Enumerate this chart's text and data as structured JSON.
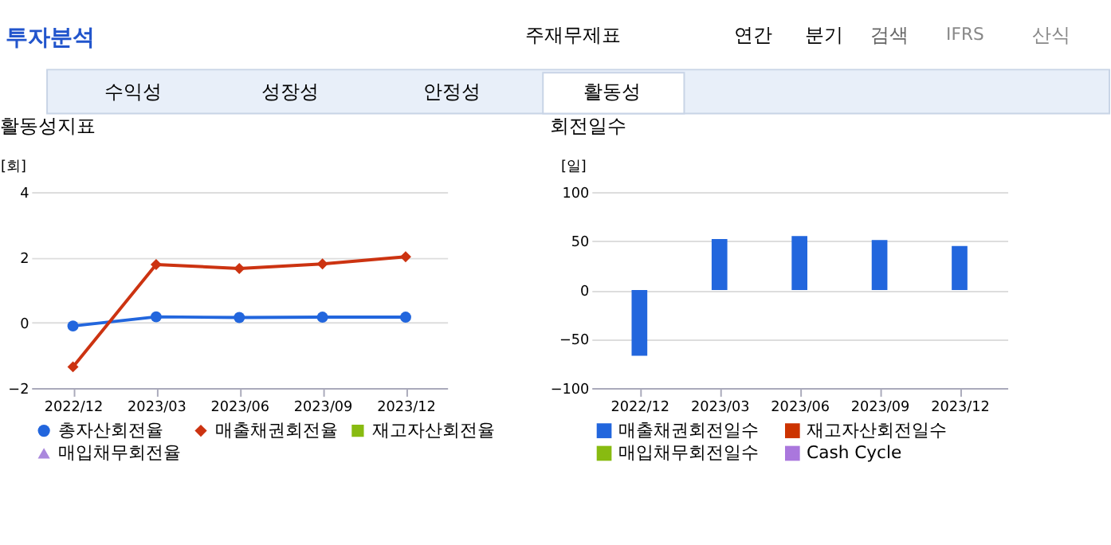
{
  "chart_data": [
    {
      "type": "other",
      "annotations": [
        "투자분석",
        "주재무제표",
        "연간",
        "분기",
        "검색",
        "IFRS",
        "산식",
        "수익성",
        "성장성",
        "안정성",
        "활동성"
      ]
    },
    {
      "type": "line",
      "title": "활동성지표",
      "ylabel": "[회]",
      "categories": [
        "2022/12",
        "2023/03",
        "2023/06",
        "2023/09",
        "2023/12"
      ],
      "ylim": [
        -2,
        4
      ],
      "yticks": [
        -2,
        0,
        2,
        4
      ],
      "grid": "y",
      "legend": "bottom",
      "series": [
        {
          "name": "총자산회전율",
          "color": "#2266dd",
          "marker": "circle",
          "values": [
            -0.1,
            0.18,
            0.16,
            0.17,
            0.17
          ]
        },
        {
          "name": "매출채권회전율",
          "color": "#cc3311",
          "marker": "diamond",
          "values": [
            -1.35,
            1.78,
            1.66,
            1.8,
            2.02
          ]
        },
        {
          "name": "재고자산회전율",
          "color": "#88bb11",
          "marker": "square",
          "values": [
            null,
            null,
            null,
            null,
            null
          ]
        },
        {
          "name": "매입채무회전율",
          "color": "#aa88dd",
          "marker": "triangle",
          "values": [
            null,
            null,
            null,
            null,
            null
          ]
        }
      ]
    },
    {
      "type": "bar",
      "title": "회전일수",
      "ylabel": "[일]",
      "categories": [
        "2022/12",
        "2023/03",
        "2023/06",
        "2023/09",
        "2023/12"
      ],
      "ylim": [
        -100,
        100
      ],
      "yticks": [
        -100,
        -50,
        0,
        50,
        100
      ],
      "grid": "y",
      "legend": "bottom",
      "series": [
        {
          "name": "매출채권회전일수",
          "color": "#2266dd",
          "values": [
            -67,
            52,
            55,
            51,
            45
          ]
        },
        {
          "name": "재고자산회전일수",
          "color": "#cc3300",
          "values": [
            null,
            null,
            null,
            null,
            null
          ]
        },
        {
          "name": "매입채무회전일수",
          "color": "#88bb11",
          "values": [
            null,
            null,
            null,
            null,
            null
          ]
        },
        {
          "name": "Cash Cycle",
          "color": "#aa77dd",
          "values": [
            null,
            null,
            null,
            null,
            null
          ]
        }
      ]
    }
  ]
}
